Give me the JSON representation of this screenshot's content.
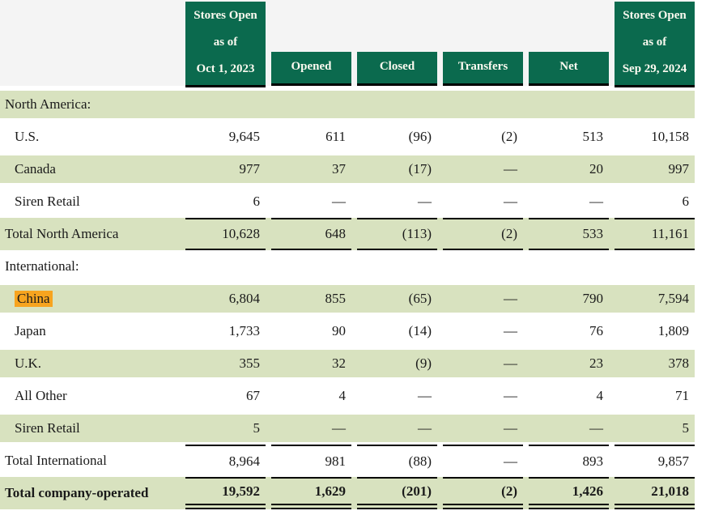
{
  "colors": {
    "header_green": "#0b6a4e",
    "header_text": "#fcfaf0",
    "row_shaded_green": "#d8e2bf",
    "header_band_gray": "#f4f4f4",
    "search_highlight_orange": "#f7a41f",
    "body_text": "#1a1a1a",
    "rule_black": "#000000"
  },
  "table": {
    "columns": [
      {
        "id": "stores_open_2023",
        "lines": [
          "Stores Open",
          "as of",
          "Oct 1, 2023"
        ]
      },
      {
        "id": "opened",
        "lines": [
          "Opened"
        ]
      },
      {
        "id": "closed",
        "lines": [
          "Closed"
        ]
      },
      {
        "id": "transfers",
        "lines": [
          "Transfers"
        ]
      },
      {
        "id": "net",
        "lines": [
          "Net"
        ]
      },
      {
        "id": "stores_open_2024",
        "lines": [
          "Stores Open",
          "as of",
          "Sep 29, 2024"
        ]
      }
    ],
    "rows": [
      {
        "label": "North America:",
        "section": true,
        "shaded": true,
        "values": [
          "",
          "",
          "",
          "",
          "",
          ""
        ]
      },
      {
        "label": "U.S.",
        "indent": true,
        "shaded": false,
        "values": [
          "9,645",
          "611",
          "(96)",
          "(2)",
          "513",
          "10,158"
        ]
      },
      {
        "label": "Canada",
        "indent": true,
        "shaded": true,
        "values": [
          "977",
          "37",
          "(17)",
          "—",
          "20",
          "997"
        ]
      },
      {
        "label": "Siren Retail",
        "indent": true,
        "shaded": false,
        "values": [
          "6",
          "—",
          "—",
          "—",
          "—",
          "6"
        ]
      },
      {
        "label": "Total North America",
        "shaded": true,
        "border": "tb",
        "values": [
          "10,628",
          "648",
          "(113)",
          "(2)",
          "533",
          "11,161"
        ]
      },
      {
        "label": "International:",
        "section": true,
        "shaded": false,
        "values": [
          "",
          "",
          "",
          "",
          "",
          ""
        ]
      },
      {
        "label": "China",
        "indent": true,
        "shaded": true,
        "highlight": true,
        "values": [
          "6,804",
          "855",
          "(65)",
          "—",
          "790",
          "7,594"
        ]
      },
      {
        "label": "Japan",
        "indent": true,
        "shaded": false,
        "values": [
          "1,733",
          "90",
          "(14)",
          "—",
          "76",
          "1,809"
        ]
      },
      {
        "label": "U.K.",
        "indent": true,
        "shaded": true,
        "values": [
          "355",
          "32",
          "(9)",
          "—",
          "23",
          "378"
        ]
      },
      {
        "label": "All Other",
        "indent": true,
        "shaded": false,
        "values": [
          "67",
          "4",
          "—",
          "—",
          "4",
          "71"
        ]
      },
      {
        "label": "Siren Retail",
        "indent": true,
        "shaded": true,
        "values": [
          "5",
          "—",
          "—",
          "—",
          "—",
          "5"
        ]
      },
      {
        "label": "Total International",
        "shaded": false,
        "border": "t",
        "values": [
          "8,964",
          "981",
          "(88)",
          "—",
          "893",
          "9,857"
        ]
      },
      {
        "label": "Total company-operated",
        "shaded": true,
        "bold": true,
        "border": "f",
        "values": [
          "19,592",
          "1,629",
          "(201)",
          "(2)",
          "1,426",
          "21,018"
        ]
      }
    ]
  }
}
